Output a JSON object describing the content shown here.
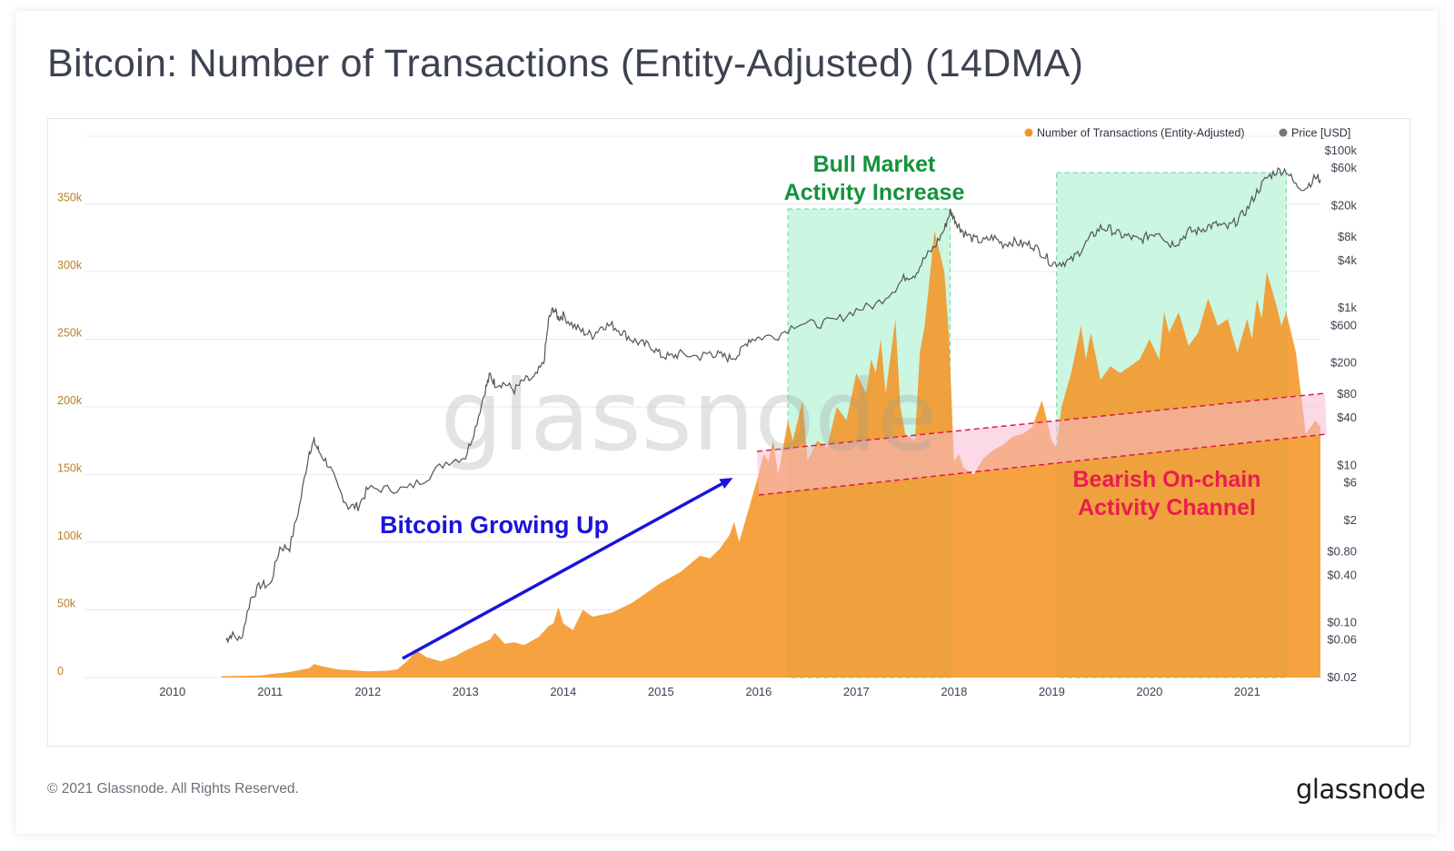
{
  "title": "Bitcoin: Number of Transactions (Entity-Adjusted) (14DMA)",
  "footer": "© 2021 Glassnode. All Rights Reserved.",
  "logo": "glassnode",
  "watermark": "glassnode",
  "colors": {
    "transactions": "#f5921f",
    "price": "#555555",
    "bull_zone": "#c8f6df",
    "bull_zone_border": "#68d3a1",
    "channel_fill": "#f7bcd0",
    "channel_line": "#e0184f",
    "arrow": "#1b14d9",
    "bull_text": "#12933b",
    "bear_text": "#ea1c50",
    "growth_text": "#1b14d9",
    "tick_left": "#b9802a"
  },
  "chart_data": {
    "type": "area",
    "legend_position": "top-right",
    "legend": [
      {
        "label": "Number of Transactions (Entity-Adjusted)",
        "color": "#f5921f"
      },
      {
        "label": "Price [USD]",
        "color": "#777777"
      }
    ],
    "x_ticks": [
      "2010",
      "2011",
      "2012",
      "2013",
      "2014",
      "2015",
      "2016",
      "2017",
      "2018",
      "2019",
      "2020",
      "2021"
    ],
    "y_left_ticks": [
      "0",
      "50k",
      "100k",
      "150k",
      "200k",
      "250k",
      "300k",
      "350k"
    ],
    "y_left_values": [
      0,
      50000,
      100000,
      150000,
      200000,
      250000,
      300000,
      350000
    ],
    "y_left_range": [
      0,
      400000
    ],
    "y_right_ticks": [
      "$100k",
      "$60k",
      "$20k",
      "$8k",
      "$4k",
      "$1k",
      "$600",
      "$200",
      "$80",
      "$40",
      "$10",
      "$6",
      "$2",
      "$0.80",
      "$0.40",
      "$0.10",
      "$0.06",
      "$0.02"
    ],
    "y_right_values": [
      100000,
      60000,
      20000,
      8000,
      4000,
      1000,
      600,
      200,
      80,
      40,
      10,
      6,
      2,
      0.8,
      0.4,
      0.1,
      0.06,
      0.02
    ],
    "y_right_scale": "log",
    "y_right_range": [
      0.02,
      100000
    ],
    "x_range": [
      2009.1,
      2021.75
    ],
    "series": [
      {
        "name": "Number of Transactions (Entity-Adjusted)",
        "axis": "left",
        "x": [
          2010.5,
          2010.9,
          2011.0,
          2011.2,
          2011.4,
          2011.45,
          2011.55,
          2011.7,
          2011.9,
          2012.0,
          2012.2,
          2012.3,
          2012.4,
          2012.5,
          2012.6,
          2012.75,
          2012.9,
          2013.0,
          2013.15,
          2013.25,
          2013.3,
          2013.4,
          2013.5,
          2013.6,
          2013.75,
          2013.85,
          2013.9,
          2013.95,
          2014.0,
          2014.1,
          2014.2,
          2014.3,
          2014.5,
          2014.7,
          2014.9,
          2015.0,
          2015.2,
          2015.4,
          2015.5,
          2015.6,
          2015.7,
          2015.75,
          2015.8,
          2015.9,
          2016.0,
          2016.05,
          2016.1,
          2016.15,
          2016.2,
          2016.25,
          2016.3,
          2016.35,
          2016.45,
          2016.5,
          2016.6,
          2016.7,
          2016.8,
          2016.9,
          2017.0,
          2017.1,
          2017.15,
          2017.2,
          2017.25,
          2017.3,
          2017.4,
          2017.45,
          2017.5,
          2017.6,
          2017.65,
          2017.7,
          2017.8,
          2017.9,
          2017.95,
          2018.0,
          2018.05,
          2018.1,
          2018.2,
          2018.3,
          2018.4,
          2018.5,
          2018.6,
          2018.7,
          2018.8,
          2018.9,
          2018.95,
          2019.0,
          2019.05,
          2019.1,
          2019.2,
          2019.3,
          2019.35,
          2019.4,
          2019.5,
          2019.6,
          2019.7,
          2019.8,
          2019.9,
          2020.0,
          2020.1,
          2020.15,
          2020.2,
          2020.3,
          2020.4,
          2020.5,
          2020.6,
          2020.7,
          2020.8,
          2020.9,
          2021.0,
          2021.05,
          2021.1,
          2021.15,
          2021.2,
          2021.3,
          2021.35,
          2021.4,
          2021.5,
          2021.6,
          2021.7,
          2021.75
        ],
        "values": [
          1000,
          1500,
          2500,
          4000,
          7000,
          10000,
          8000,
          6000,
          5000,
          4500,
          5000,
          6000,
          12000,
          20000,
          15000,
          12000,
          16000,
          20000,
          25000,
          28000,
          33000,
          25000,
          26000,
          24000,
          30000,
          38000,
          40000,
          52000,
          40000,
          35000,
          50000,
          45000,
          48000,
          55000,
          65000,
          70000,
          78000,
          90000,
          88000,
          95000,
          105000,
          115000,
          100000,
          125000,
          150000,
          165000,
          160000,
          175000,
          150000,
          170000,
          190000,
          175000,
          205000,
          160000,
          175000,
          170000,
          200000,
          190000,
          225000,
          210000,
          235000,
          225000,
          250000,
          210000,
          265000,
          200000,
          180000,
          175000,
          240000,
          260000,
          330000,
          300000,
          250000,
          160000,
          165000,
          155000,
          150000,
          162000,
          168000,
          172000,
          178000,
          180000,
          185000,
          205000,
          190000,
          175000,
          170000,
          200000,
          225000,
          260000,
          235000,
          255000,
          220000,
          230000,
          225000,
          230000,
          235000,
          250000,
          235000,
          270000,
          255000,
          270000,
          245000,
          255000,
          280000,
          260000,
          265000,
          240000,
          265000,
          250000,
          280000,
          265000,
          300000,
          275000,
          260000,
          270000,
          240000,
          180000,
          190000,
          185000
        ]
      },
      {
        "name": "Price [USD]",
        "axis": "right",
        "scale": "log",
        "x": [
          2010.55,
          2010.6,
          2010.7,
          2010.8,
          2010.9,
          2011.0,
          2011.1,
          2011.2,
          2011.3,
          2011.4,
          2011.45,
          2011.5,
          2011.6,
          2011.7,
          2011.8,
          2011.9,
          2012.0,
          2012.2,
          2012.4,
          2012.6,
          2012.8,
          2013.0,
          2013.1,
          2013.2,
          2013.25,
          2013.3,
          2013.4,
          2013.5,
          2013.6,
          2013.7,
          2013.8,
          2013.85,
          2013.9,
          2013.95,
          2014.0,
          2014.1,
          2014.2,
          2014.3,
          2014.4,
          2014.5,
          2014.6,
          2014.7,
          2014.8,
          2014.9,
          2015.0,
          2015.1,
          2015.2,
          2015.4,
          2015.5,
          2015.6,
          2015.7,
          2015.8,
          2015.9,
          2016.0,
          2016.2,
          2016.4,
          2016.6,
          2016.8,
          2017.0,
          2017.2,
          2017.4,
          2017.5,
          2017.6,
          2017.7,
          2017.8,
          2017.9,
          2017.96,
          2018.0,
          2018.05,
          2018.1,
          2018.2,
          2018.3,
          2018.4,
          2018.5,
          2018.6,
          2018.7,
          2018.8,
          2018.9,
          2019.0,
          2019.1,
          2019.2,
          2019.3,
          2019.4,
          2019.5,
          2019.6,
          2019.7,
          2019.8,
          2019.9,
          2020.0,
          2020.1,
          2020.2,
          2020.3,
          2020.4,
          2020.5,
          2020.6,
          2020.7,
          2020.8,
          2020.9,
          2021.0,
          2021.1,
          2021.2,
          2021.3,
          2021.4,
          2021.5,
          2021.6,
          2021.7,
          2021.75
        ],
        "values": [
          0.06,
          0.07,
          0.06,
          0.2,
          0.3,
          0.3,
          0.9,
          0.9,
          3,
          15,
          20,
          15,
          10,
          5,
          3,
          3,
          5,
          5,
          5,
          7,
          11,
          13,
          30,
          90,
          140,
          110,
          110,
          90,
          120,
          125,
          200,
          700,
          1000,
          750,
          800,
          600,
          500,
          450,
          600,
          600,
          500,
          400,
          350,
          330,
          250,
          240,
          260,
          240,
          270,
          250,
          230,
          260,
          400,
          420,
          450,
          650,
          620,
          700,
          950,
          1100,
          1800,
          2500,
          2700,
          4300,
          6000,
          10000,
          17000,
          14000,
          11000,
          9000,
          7500,
          7000,
          8000,
          6500,
          7000,
          6500,
          6400,
          5000,
          3700,
          3800,
          4000,
          5500,
          8000,
          10500,
          10000,
          8500,
          8000,
          7200,
          8500,
          9500,
          6500,
          7000,
          9500,
          9500,
          11000,
          11500,
          10500,
          13000,
          18000,
          30000,
          45000,
          55000,
          57000,
          36000,
          34000,
          46000,
          43000
        ]
      }
    ]
  },
  "annotations": {
    "bull_label_line1": "Bull Market",
    "bull_label_line2": "Activity Increase",
    "growth_label": "Bitcoin Growing Up",
    "bear_label_line1": "Bearish On-chain",
    "bear_label_line2": "Activity Channel"
  }
}
